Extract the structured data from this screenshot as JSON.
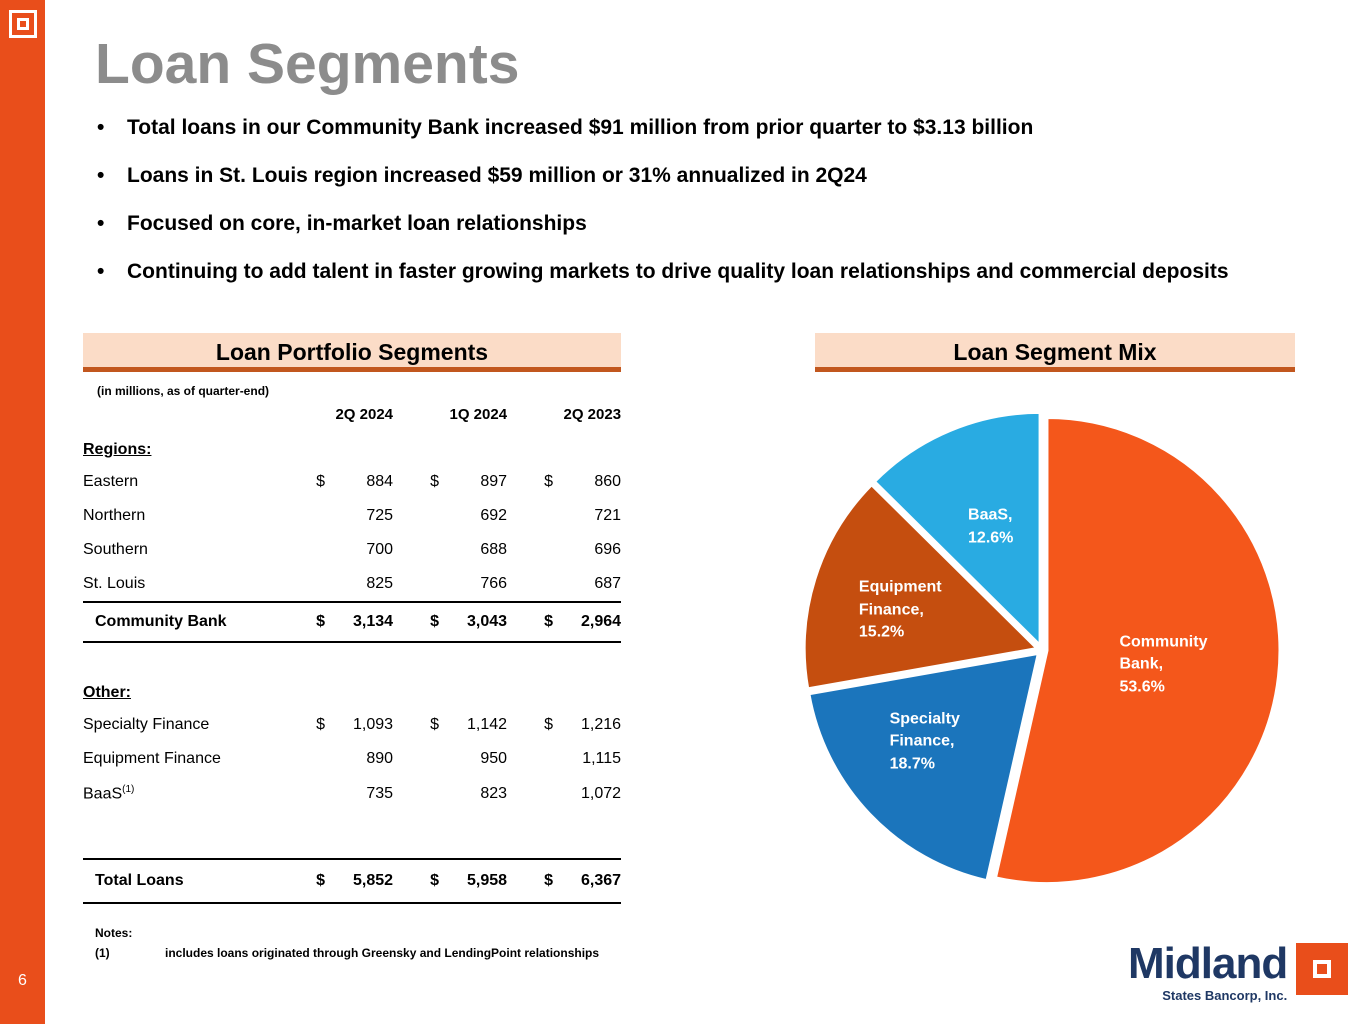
{
  "colors": {
    "accent_orange": "#E94E1B",
    "peach_header_bg": "#FBDCC7",
    "header_underline": "#C2571E",
    "navy": "#1F3864",
    "title_gray": "#8C8C8C"
  },
  "page": {
    "number": "6",
    "title": "Loan Segments"
  },
  "bullets": [
    "Total loans in our Community Bank increased $91 million from prior quarter to $3.13 billion",
    "Loans in St. Louis region increased $59 million or 31% annualized in 2Q24",
    "Focused on core, in-market loan relationships",
    "Continuing to add talent in faster growing markets to drive quality loan relationships and commercial deposits"
  ],
  "table": {
    "title": "Loan Portfolio Segments",
    "subtitle": "(in millions, as of quarter-end)",
    "currency": "$",
    "columns": [
      "2Q 2024",
      "1Q 2024",
      "2Q 2023"
    ],
    "regions": {
      "label": "Regions:",
      "rows": [
        {
          "label": "Eastern",
          "values": [
            "884",
            "897",
            "860"
          ]
        },
        {
          "label": "Northern",
          "values": [
            "725",
            "692",
            "721"
          ]
        },
        {
          "label": "Southern",
          "values": [
            "700",
            "688",
            "696"
          ]
        },
        {
          "label": "St. Louis",
          "values": [
            "825",
            "766",
            "687"
          ]
        }
      ],
      "total": {
        "label": "Community Bank",
        "values": [
          "3,134",
          "3,043",
          "2,964"
        ]
      }
    },
    "other": {
      "label": "Other:",
      "rows": [
        {
          "label": "Specialty Finance",
          "values": [
            "1,093",
            "1,142",
            "1,216"
          ]
        },
        {
          "label": "Equipment Finance",
          "values": [
            "890",
            "950",
            "1,115"
          ]
        },
        {
          "label": "BaaS",
          "footnote": "(1)",
          "values": [
            "735",
            "823",
            "1,072"
          ]
        }
      ]
    },
    "total": {
      "label": "Total Loans",
      "values": [
        "5,852",
        "5,958",
        "6,367"
      ]
    },
    "notes": {
      "heading": "Notes:",
      "items": [
        {
          "ref": "(1)",
          "text": "includes loans originated through Greensky and LendingPoint relationships"
        }
      ]
    }
  },
  "chart": {
    "title": "Loan Segment Mix"
  },
  "chart_data": {
    "type": "pie",
    "title": "Loan Segment Mix",
    "labels": [
      "Community Bank",
      "Specialty Finance",
      "Equipment Finance",
      "BaaS"
    ],
    "values": [
      53.6,
      18.7,
      15.2,
      12.6
    ],
    "colors": [
      "#F4571B",
      "#1B75BC",
      "#C54E0F",
      "#29ABE2"
    ],
    "start_angle_deg": 0,
    "direction": "clockwise",
    "label_position": "inside",
    "label_color": "#FFFFFF",
    "legend": "none"
  },
  "footer_logo": {
    "wordmark": "Midland",
    "subtext": "States Bancorp, Inc."
  }
}
